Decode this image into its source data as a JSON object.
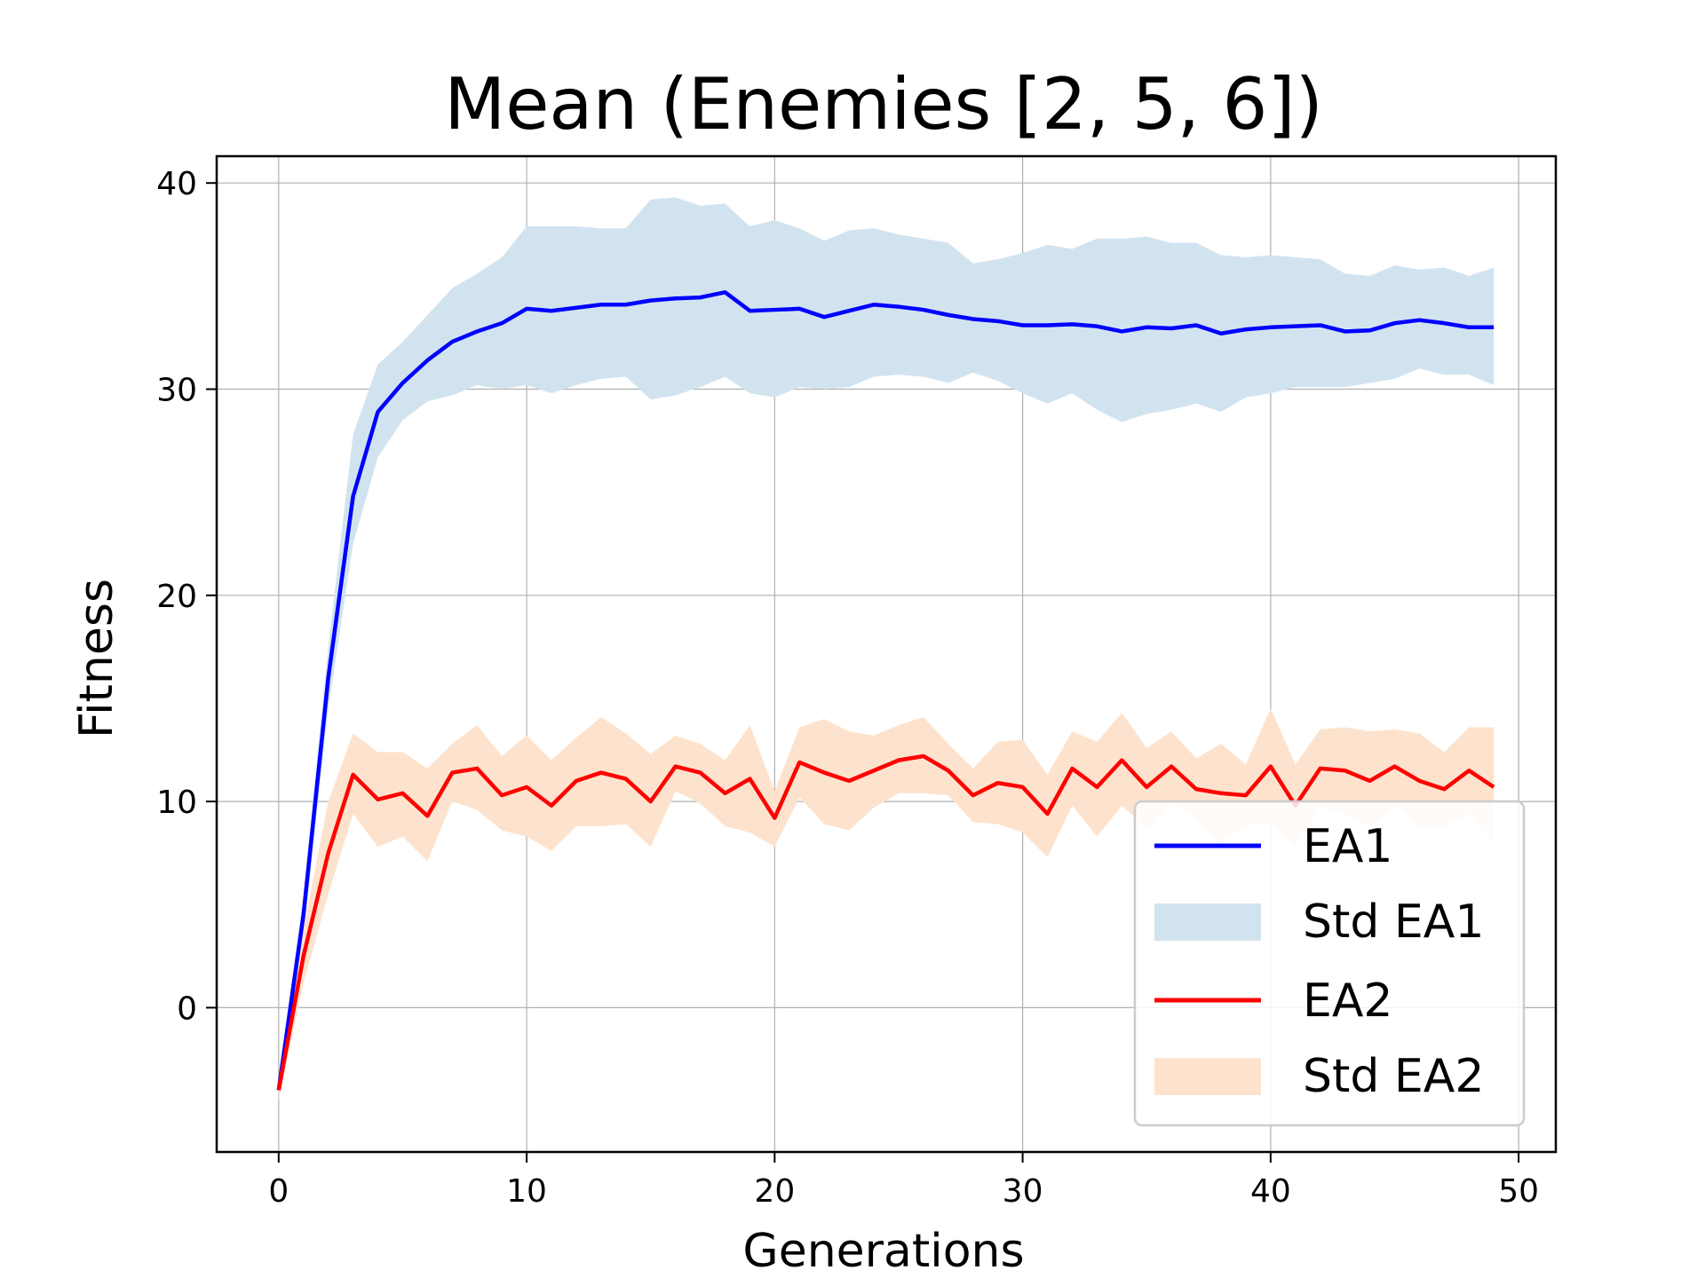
{
  "chart_data": {
    "type": "line",
    "title": "Mean (Enemies [2, 5, 6])",
    "xlabel": "Generations",
    "ylabel": "Fitness",
    "xlim": [
      -2.5,
      51.5
    ],
    "ylim": [
      -7,
      41.3
    ],
    "xticks": [
      0,
      10,
      20,
      30,
      40,
      50
    ],
    "yticks": [
      0,
      10,
      20,
      30,
      40
    ],
    "grid": true,
    "legend_position": "lower-right",
    "x": [
      0,
      1,
      2,
      3,
      4,
      5,
      6,
      7,
      8,
      9,
      10,
      11,
      12,
      13,
      14,
      15,
      16,
      17,
      18,
      19,
      20,
      21,
      22,
      23,
      24,
      25,
      26,
      27,
      28,
      29,
      30,
      31,
      32,
      33,
      34,
      35,
      36,
      37,
      38,
      39,
      40,
      41,
      42,
      43,
      44,
      45,
      46,
      47,
      48,
      49
    ],
    "series": [
      {
        "name": "EA1",
        "color": "#0000ff",
        "values": [
          -4,
          4.5,
          16,
          24.8,
          28.9,
          30.3,
          31.4,
          32.3,
          32.8,
          33.2,
          33.9,
          33.8,
          33.95,
          34.1,
          34.1,
          34.3,
          34.4,
          34.45,
          34.7,
          33.8,
          33.85,
          33.9,
          33.5,
          33.8,
          34.1,
          34.0,
          33.85,
          33.6,
          33.4,
          33.3,
          33.1,
          33.1,
          33.15,
          33.05,
          32.8,
          33.0,
          32.95,
          33.1,
          32.7,
          32.9,
          33.0,
          33.05,
          33.1,
          32.8,
          32.85,
          33.2,
          33.35,
          33.2,
          33.0,
          33.0
        ],
        "std_label": "Std EA1",
        "std_color": "#d2e3f0",
        "std_upper": [
          -3.5,
          5.5,
          17.5,
          27.8,
          31.2,
          32.3,
          33.6,
          34.9,
          35.6,
          36.4,
          37.9,
          37.9,
          37.9,
          37.8,
          37.8,
          39.2,
          39.3,
          38.9,
          39.0,
          37.9,
          38.2,
          37.8,
          37.2,
          37.7,
          37.8,
          37.5,
          37.3,
          37.1,
          36.1,
          36.3,
          36.6,
          37.0,
          36.8,
          37.3,
          37.3,
          37.4,
          37.1,
          37.1,
          36.5,
          36.4,
          36.5,
          36.4,
          36.3,
          35.6,
          35.5,
          36.0,
          35.8,
          35.9,
          35.5,
          35.9
        ],
        "std_lower": [
          -4.5,
          3.5,
          14.5,
          22.5,
          26.7,
          28.5,
          29.4,
          29.7,
          30.2,
          30.0,
          30.2,
          29.8,
          30.2,
          30.5,
          30.6,
          29.5,
          29.7,
          30.1,
          30.6,
          29.8,
          29.6,
          30.1,
          30.0,
          30.1,
          30.6,
          30.7,
          30.6,
          30.3,
          30.8,
          30.4,
          29.8,
          29.3,
          29.8,
          29.0,
          28.4,
          28.8,
          29.0,
          29.3,
          28.9,
          29.6,
          29.8,
          30.1,
          30.1,
          30.1,
          30.3,
          30.5,
          31.0,
          30.7,
          30.7,
          30.2
        ]
      },
      {
        "name": "EA2",
        "color": "#ff0000",
        "values": [
          -4,
          2.5,
          7.5,
          11.3,
          10.1,
          10.4,
          9.3,
          11.4,
          11.6,
          10.3,
          10.7,
          9.8,
          11.0,
          11.4,
          11.1,
          10.0,
          11.7,
          11.4,
          10.4,
          11.1,
          9.2,
          11.9,
          11.4,
          11.0,
          11.5,
          12.0,
          12.2,
          11.5,
          10.3,
          10.9,
          10.7,
          9.4,
          11.6,
          10.7,
          12.0,
          10.7,
          11.7,
          10.6,
          10.4,
          10.3,
          11.7,
          9.8,
          11.6,
          11.5,
          11.0,
          11.7,
          11.0,
          10.6,
          11.5,
          10.7
        ],
        "std_label": "Std EA2",
        "std_color": "#fde3cd",
        "std_upper": [
          -3.5,
          3.8,
          10.0,
          13.3,
          12.4,
          12.4,
          11.6,
          12.8,
          13.7,
          12.2,
          13.2,
          12.0,
          13.1,
          14.1,
          13.3,
          12.3,
          13.2,
          12.8,
          12.0,
          13.7,
          10.5,
          13.6,
          14.0,
          13.4,
          13.2,
          13.7,
          14.1,
          12.8,
          11.6,
          12.9,
          13.0,
          11.3,
          13.4,
          12.9,
          14.3,
          12.6,
          13.4,
          12.1,
          12.8,
          11.8,
          14.5,
          11.8,
          13.5,
          13.6,
          13.4,
          13.5,
          13.3,
          12.4,
          13.6,
          13.6
        ],
        "std_lower": [
          -4.5,
          1.2,
          5.5,
          9.4,
          7.8,
          8.3,
          7.1,
          10.0,
          9.6,
          8.6,
          8.3,
          7.6,
          8.8,
          8.8,
          8.9,
          7.8,
          10.5,
          9.9,
          8.8,
          8.5,
          7.8,
          10.2,
          8.9,
          8.6,
          9.7,
          10.4,
          10.4,
          10.3,
          9.0,
          8.9,
          8.5,
          7.3,
          9.8,
          8.3,
          9.8,
          8.7,
          10.0,
          9.1,
          8.0,
          8.8,
          9.0,
          7.8,
          9.7,
          9.4,
          8.7,
          9.9,
          8.8,
          8.8,
          9.4,
          8.0
        ]
      }
    ],
    "legend": [
      "EA1",
      "Std EA1",
      "EA2",
      "Std EA2"
    ]
  }
}
